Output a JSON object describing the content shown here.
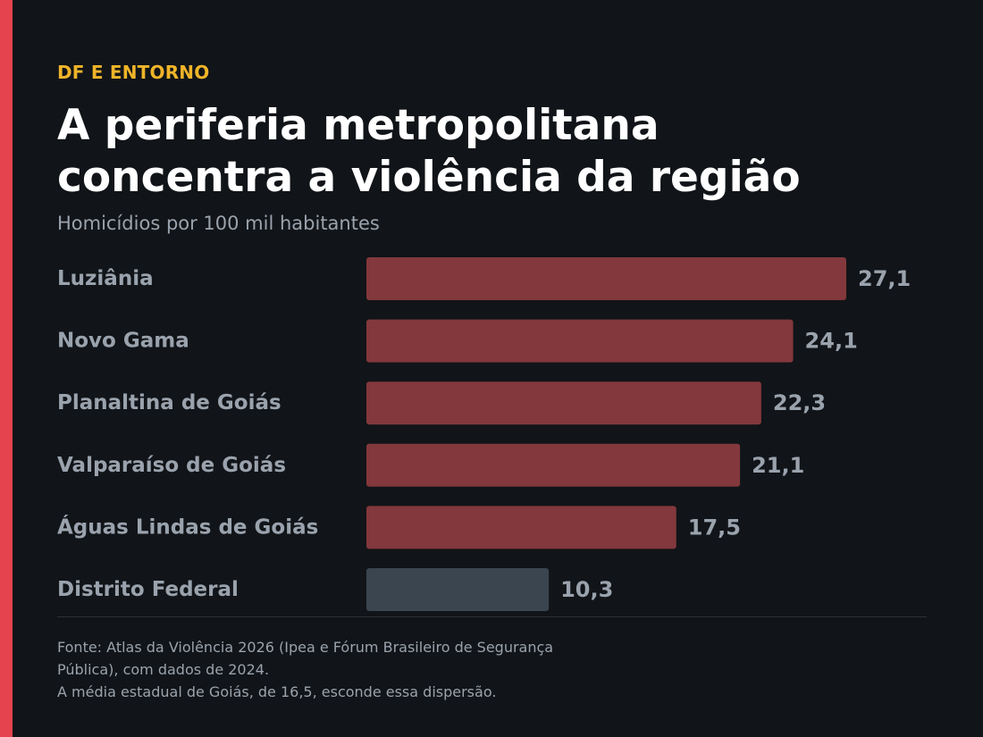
{
  "colors": {
    "accent": "#e5444f",
    "kicker": "#f0b429",
    "highlight_bar": "#82383c",
    "reference_bar": "#3b4550",
    "label": "#9aa3ad",
    "value_label": "#9aa3ad"
  },
  "header": {
    "kicker": "DF E ENTORNO",
    "title_line1": "A periferia metropolitana",
    "title_line2": "concentra a violência da região",
    "subtitle": "Homicídios por 100 mil habitantes"
  },
  "chart_data": {
    "type": "bar",
    "orientation": "horizontal",
    "categories": [
      "Luziânia",
      "Novo Gama",
      "Planaltina de Goiás",
      "Valparaíso de Goiás",
      "Águas Lindas de Goiás",
      "Distrito Federal"
    ],
    "values": [
      27.1,
      24.1,
      22.3,
      21.1,
      17.5,
      10.3
    ],
    "value_labels": [
      "27,1",
      "24,1",
      "22,3",
      "21,1",
      "17,5",
      "10,3"
    ],
    "highlight": [
      true,
      true,
      true,
      true,
      true,
      false
    ],
    "xlim": [
      0,
      27.1
    ],
    "grid": false,
    "legend": "none"
  },
  "footer": {
    "source_line1": "Fonte: Atlas da Violência 2026 (Ipea e Fórum Brasileiro de Segurança",
    "source_line2": "Pública), com dados de 2024.",
    "note": "A média estadual de Goiás, de 16,5, esconde essa dispersão."
  }
}
